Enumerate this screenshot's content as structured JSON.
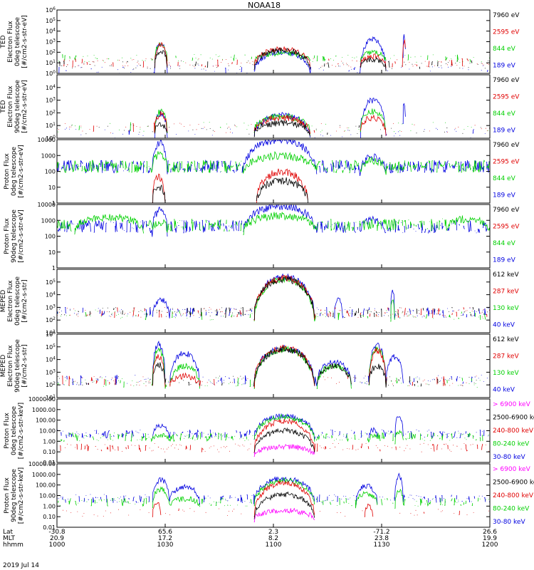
{
  "title": "NOAA18",
  "date_label": "2019 Jul 14",
  "colors": {
    "black": "#000000",
    "red": "#e00000",
    "green": "#00d000",
    "blue": "#0000e0",
    "magenta": "#ff00ff"
  },
  "panels": [
    {
      "ylabel_lines": [
        "TED",
        "Electron Flux",
        "0deg telescope",
        "[#/cm2-s-str-eV]"
      ],
      "scale": "log",
      "ylim": [
        1,
        1000000
      ],
      "ticks": [
        "10^0",
        "10^1",
        "10^2",
        "10^3",
        "10^4",
        "10^5",
        "10^6"
      ],
      "legend": [
        {
          "label": "7960 eV",
          "color": "black"
        },
        {
          "label": "2595 eV",
          "color": "red"
        },
        {
          "label": "844 eV",
          "color": "green"
        },
        {
          "label": "189 eV",
          "color": "blue"
        }
      ]
    },
    {
      "ylabel_lines": [
        "TED",
        "Electron Flux",
        "90deg telescope",
        "[#/cm2-s-str-eV]"
      ],
      "scale": "log",
      "ylim": [
        1,
        100000
      ],
      "ticks": [
        "10^0",
        "10^1",
        "10^2",
        "10^3",
        "10^4"
      ],
      "legend": [
        {
          "label": "7960 eV",
          "color": "black"
        },
        {
          "label": "2595 eV",
          "color": "red"
        },
        {
          "label": "844 eV",
          "color": "green"
        },
        {
          "label": "189 eV",
          "color": "blue"
        }
      ]
    },
    {
      "ylabel_lines": [
        "Proton Flux",
        "0deg telescope",
        "[#/cm2-s-str-eV]"
      ],
      "scale": "log",
      "ylim": [
        1,
        10000
      ],
      "ticks": [
        "1",
        "10",
        "100",
        "1000",
        "10000"
      ],
      "legend": [
        {
          "label": "7960 eV",
          "color": "black"
        },
        {
          "label": "2595 eV",
          "color": "red"
        },
        {
          "label": "844 eV",
          "color": "green"
        },
        {
          "label": "189 eV",
          "color": "blue"
        }
      ]
    },
    {
      "ylabel_lines": [
        "Proton Flux",
        "90deg telescope",
        "[#/cm2-s-str-eV]"
      ],
      "scale": "log",
      "ylim": [
        1,
        10000
      ],
      "ticks": [
        "1",
        "10",
        "100",
        "1000",
        "10000"
      ],
      "legend": [
        {
          "label": "7960 eV",
          "color": "black"
        },
        {
          "label": "2595 eV",
          "color": "red"
        },
        {
          "label": "844 eV",
          "color": "green"
        },
        {
          "label": "189 eV",
          "color": "blue"
        }
      ]
    },
    {
      "ylabel_lines": [
        "MEPED",
        "Electron Flux",
        "0deg telescope",
        "[#/cm2-s-str]"
      ],
      "scale": "log",
      "ylim": [
        10,
        1000000
      ],
      "ticks": [
        "10^1",
        "10^2",
        "10^3",
        "10^4",
        "10^5"
      ],
      "legend": [
        {
          "label": "612 keV",
          "color": "black"
        },
        {
          "label": "287 keV",
          "color": "red"
        },
        {
          "label": "130 keV",
          "color": "green"
        },
        {
          "label": "40 keV",
          "color": "blue"
        }
      ]
    },
    {
      "ylabel_lines": [
        "MEPED",
        "Electron Flux",
        "90deg telescope",
        "[#/cm2-s-str]"
      ],
      "scale": "log",
      "ylim": [
        10,
        1000000
      ],
      "ticks": [
        "10^1",
        "10^2",
        "10^3",
        "10^4",
        "10^5",
        "10^6"
      ],
      "legend": [
        {
          "label": "612 keV",
          "color": "black"
        },
        {
          "label": "287 keV",
          "color": "red"
        },
        {
          "label": "130 keV",
          "color": "green"
        },
        {
          "label": "40 keV",
          "color": "blue"
        }
      ]
    },
    {
      "ylabel_lines": [
        "Proton Flux",
        "0deg telescope",
        "[#/cm2-s-str-keV]"
      ],
      "scale": "log",
      "ylim": [
        0.01,
        10000
      ],
      "ticks": [
        "0.01",
        "0.10",
        "1.00",
        "10.00",
        "100.00",
        "1000.00",
        "10000.00"
      ],
      "legend": [
        {
          "label": "> 6900 keV",
          "color": "magenta"
        },
        {
          "label": "2500-6900 keV",
          "color": "black"
        },
        {
          "label": "240-800 keV",
          "color": "red"
        },
        {
          "label": "80-240 keV",
          "color": "green"
        },
        {
          "label": "30-80 keV",
          "color": "blue"
        }
      ]
    },
    {
      "ylabel_lines": [
        "Proton Flux",
        "90deg telescope",
        "[#/cm2-s-str-keV]"
      ],
      "scale": "log",
      "ylim": [
        0.01,
        10000
      ],
      "ticks": [
        "0.01",
        "0.10",
        "1.00",
        "10.00",
        "100.00",
        "1000.00",
        "10000.00"
      ],
      "legend": [
        {
          "label": "> 6900 keV",
          "color": "magenta"
        },
        {
          "label": "2500-6900 keV",
          "color": "black"
        },
        {
          "label": "240-800 keV",
          "color": "red"
        },
        {
          "label": "80-240 keV",
          "color": "green"
        },
        {
          "label": "30-80 keV",
          "color": "blue"
        }
      ]
    }
  ],
  "chart_data": {
    "type": "line",
    "title": "NOAA18",
    "x_axis": {
      "row_labels": [
        "Lat",
        "MLT",
        "hhmm"
      ],
      "columns": [
        {
          "Lat": "-30.8",
          "MLT": "20.9",
          "hhmm": "1000"
        },
        {
          "Lat": "65.6",
          "MLT": "17.2",
          "hhmm": "1030"
        },
        {
          "Lat": "2.3",
          "MLT": "8.2",
          "hhmm": "1100"
        },
        {
          "Lat": "-71.2",
          "MLT": "23.8",
          "hhmm": "1130"
        },
        {
          "Lat": "26.6",
          "MLT": "19.9",
          "hhmm": "1200"
        }
      ],
      "xlim_hhmm": [
        "1000",
        "1200"
      ]
    },
    "series_envelopes": [
      {
        "panel": 0,
        "color": "blue",
        "baseline": 0.0,
        "floor": 0.0,
        "events": [
          [
            0.225,
            0.255,
            2.9
          ],
          [
            0.455,
            0.585,
            2.0
          ],
          [
            0.7,
            0.76,
            3.2
          ],
          [
            0.798,
            0.806,
            3.5
          ]
        ],
        "sparse": 0.15
      },
      {
        "panel": 0,
        "color": "green",
        "baseline": 1.0,
        "floor": 0.6,
        "events": [
          [
            0.225,
            0.255,
            2.8
          ],
          [
            0.455,
            0.585,
            1.9
          ],
          [
            0.7,
            0.76,
            2.0
          ]
        ],
        "sparse": 0.2
      },
      {
        "panel": 0,
        "color": "red",
        "baseline": 0.6,
        "floor": 0.4,
        "events": [
          [
            0.225,
            0.255,
            2.7
          ],
          [
            0.455,
            0.585,
            2.3
          ],
          [
            0.7,
            0.76,
            1.6
          ],
          [
            0.798,
            0.806,
            3.1
          ]
        ],
        "sparse": 0.3
      },
      {
        "panel": 0,
        "color": "black",
        "baseline": 0.4,
        "floor": 0.2,
        "events": [
          [
            0.225,
            0.255,
            2.1
          ],
          [
            0.455,
            0.585,
            2.2
          ],
          [
            0.7,
            0.76,
            1.3
          ]
        ],
        "sparse": 0.2
      },
      {
        "panel": 1,
        "color": "blue",
        "baseline": 0.0,
        "floor": 0.0,
        "events": [
          [
            0.225,
            0.255,
            2.0
          ],
          [
            0.455,
            0.585,
            1.8
          ],
          [
            0.7,
            0.76,
            3.0
          ],
          [
            0.798,
            0.806,
            2.9
          ]
        ],
        "sparse": 0.1
      },
      {
        "panel": 1,
        "color": "green",
        "baseline": 0.5,
        "floor": 0.2,
        "events": [
          [
            0.225,
            0.255,
            2.1
          ],
          [
            0.455,
            0.585,
            1.7
          ],
          [
            0.7,
            0.76,
            2.1
          ]
        ],
        "sparse": 0.1
      },
      {
        "panel": 1,
        "color": "red",
        "baseline": 0.4,
        "floor": 0.2,
        "events": [
          [
            0.225,
            0.255,
            1.9
          ],
          [
            0.455,
            0.585,
            1.6
          ],
          [
            0.7,
            0.76,
            1.6
          ]
        ],
        "sparse": 0.1
      },
      {
        "panel": 1,
        "color": "black",
        "baseline": 0.3,
        "floor": 0.1,
        "events": [
          [
            0.225,
            0.255,
            1.0
          ],
          [
            0.455,
            0.585,
            1.2
          ]
        ],
        "sparse": 0.1
      },
      {
        "panel": 2,
        "color": "blue",
        "baseline": 1.9,
        "floor": 0.9,
        "events": [
          [
            0.22,
            0.255,
            3.8
          ],
          [
            0.43,
            0.6,
            4.0
          ],
          [
            0.7,
            0.76,
            2.9
          ]
        ],
        "sparse": 0.8
      },
      {
        "panel": 2,
        "color": "green",
        "baseline": 1.9,
        "floor": 0.5,
        "events": [
          [
            0.22,
            0.255,
            3.1
          ],
          [
            0.43,
            0.6,
            3.0
          ],
          [
            0.7,
            0.76,
            2.7
          ]
        ],
        "sparse": 0.8
      },
      {
        "panel": 2,
        "color": "red",
        "baseline": 0.0,
        "floor": 0.0,
        "events": [
          [
            0.46,
            0.58,
            2.0
          ],
          [
            0.22,
            0.25,
            1.6
          ]
        ],
        "sparse": 0.0
      },
      {
        "panel": 2,
        "color": "black",
        "baseline": 0.0,
        "floor": 0.0,
        "events": [
          [
            0.46,
            0.58,
            1.4
          ],
          [
            0.22,
            0.25,
            1.0
          ]
        ],
        "sparse": 0.0
      },
      {
        "panel": 3,
        "color": "blue",
        "baseline": 2.2,
        "floor": 0.8,
        "events": [
          [
            0.22,
            0.255,
            3.6
          ],
          [
            0.43,
            0.6,
            3.9
          ],
          [
            0.7,
            0.76,
            3.0
          ]
        ],
        "sparse": 0.7
      },
      {
        "panel": 3,
        "color": "green",
        "baseline": 2.3,
        "floor": 0.6,
        "events": [
          [
            0.04,
            0.2,
            3.2
          ],
          [
            0.22,
            0.255,
            2.9
          ],
          [
            0.43,
            0.6,
            3.3
          ],
          [
            0.9,
            1.0,
            3.1
          ]
        ],
        "sparse": 0.7
      },
      {
        "panel": 4,
        "color": "blue",
        "baseline": 2.2,
        "floor": 2.0,
        "events": [
          [
            0.22,
            0.26,
            3.6
          ],
          [
            0.455,
            0.595,
            5.4
          ],
          [
            0.64,
            0.66,
            3.8
          ],
          [
            0.77,
            0.78,
            4.5
          ]
        ],
        "sparse": 0.4
      },
      {
        "panel": 4,
        "color": "green",
        "baseline": 2.0,
        "floor": 1.9,
        "events": [
          [
            0.455,
            0.595,
            5.2
          ],
          [
            0.77,
            0.78,
            3.5
          ]
        ],
        "sparse": 0.2
      },
      {
        "panel": 4,
        "color": "red",
        "baseline": 2.2,
        "floor": 2.0,
        "events": [
          [
            0.455,
            0.595,
            5.3
          ]
        ],
        "sparse": 0.3
      },
      {
        "panel": 4,
        "color": "black",
        "baseline": 2.2,
        "floor": 2.0,
        "events": [
          [
            0.455,
            0.595,
            5.2
          ]
        ],
        "sparse": 0.3
      },
      {
        "panel": 5,
        "color": "blue",
        "baseline": 2.0,
        "floor": 1.9,
        "events": [
          [
            0.22,
            0.25,
            5.2
          ],
          [
            0.26,
            0.33,
            4.5
          ],
          [
            0.455,
            0.595,
            4.9
          ],
          [
            0.6,
            0.68,
            3.8
          ],
          [
            0.72,
            0.76,
            5.1
          ],
          [
            0.76,
            0.8,
            4.2
          ]
        ],
        "sparse": 0.3
      },
      {
        "panel": 5,
        "color": "green",
        "baseline": 1.8,
        "floor": 1.7,
        "events": [
          [
            0.22,
            0.25,
            4.8
          ],
          [
            0.26,
            0.33,
            3.5
          ],
          [
            0.455,
            0.595,
            4.8
          ],
          [
            0.6,
            0.68,
            3.5
          ],
          [
            0.72,
            0.76,
            4.9
          ]
        ],
        "sparse": 0.2
      },
      {
        "panel": 5,
        "color": "red",
        "baseline": 1.9,
        "floor": 1.8,
        "events": [
          [
            0.22,
            0.25,
            4.2
          ],
          [
            0.26,
            0.33,
            2.7
          ],
          [
            0.455,
            0.595,
            4.9
          ],
          [
            0.72,
            0.76,
            4.7
          ]
        ],
        "sparse": 0.2
      },
      {
        "panel": 5,
        "color": "black",
        "baseline": 1.9,
        "floor": 1.8,
        "events": [
          [
            0.22,
            0.25,
            3.6
          ],
          [
            0.455,
            0.595,
            4.8
          ],
          [
            0.6,
            0.68,
            3.5
          ],
          [
            0.72,
            0.76,
            3.5
          ]
        ],
        "sparse": 0.2
      },
      {
        "panel": 6,
        "color": "blue",
        "baseline": 0.3,
        "floor": 0.1,
        "events": [
          [
            0.22,
            0.26,
            1.5
          ],
          [
            0.455,
            0.595,
            2.4
          ],
          [
            0.72,
            0.74,
            1.1
          ],
          [
            0.78,
            0.8,
            2.4
          ]
        ],
        "sparse": 0.5
      },
      {
        "panel": 6,
        "color": "green",
        "baseline": 0.0,
        "floor": -0.3,
        "events": [
          [
            0.22,
            0.26,
            0.6
          ],
          [
            0.455,
            0.595,
            2.3
          ],
          [
            0.72,
            0.74,
            0.5
          ],
          [
            0.78,
            0.8,
            0.8
          ]
        ],
        "sparse": 0.5
      },
      {
        "panel": 6,
        "color": "red",
        "baseline": -1.0,
        "floor": -1.0,
        "events": [
          [
            0.455,
            0.595,
            1.9
          ]
        ],
        "sparse": 0.3
      },
      {
        "panel": 6,
        "color": "black",
        "baseline": -1.2,
        "floor": -1.2,
        "events": [
          [
            0.455,
            0.595,
            1.0
          ]
        ],
        "sparse": 0.0
      },
      {
        "panel": 6,
        "color": "magenta",
        "baseline": -1.4,
        "floor": -1.5,
        "events": [
          [
            0.455,
            0.595,
            -0.5
          ]
        ],
        "sparse": 0.0
      },
      {
        "panel": 7,
        "color": "blue",
        "baseline": 0.3,
        "floor": 0.0,
        "events": [
          [
            0.22,
            0.26,
            2.5
          ],
          [
            0.26,
            0.33,
            1.8
          ],
          [
            0.455,
            0.595,
            2.6
          ],
          [
            0.69,
            0.74,
            1.9
          ],
          [
            0.78,
            0.8,
            2.9
          ]
        ],
        "sparse": 0.4
      },
      {
        "panel": 7,
        "color": "green",
        "baseline": 0.0,
        "floor": -0.3,
        "events": [
          [
            0.22,
            0.26,
            1.6
          ],
          [
            0.26,
            0.33,
            0.7
          ],
          [
            0.455,
            0.595,
            2.4
          ],
          [
            0.69,
            0.74,
            1.2
          ],
          [
            0.78,
            0.8,
            1.5
          ]
        ],
        "sparse": 0.4
      },
      {
        "panel": 7,
        "color": "red",
        "baseline": -1.0,
        "floor": -1.0,
        "events": [
          [
            0.22,
            0.24,
            0.4
          ],
          [
            0.455,
            0.595,
            2.2
          ],
          [
            0.71,
            0.73,
            0.0
          ]
        ],
        "sparse": 0.1
      },
      {
        "panel": 7,
        "color": "black",
        "baseline": -1.2,
        "floor": -1.2,
        "events": [
          [
            0.455,
            0.595,
            1.1
          ]
        ],
        "sparse": 0.0
      },
      {
        "panel": 7,
        "color": "magenta",
        "baseline": -1.4,
        "floor": -1.5,
        "events": [
          [
            0.455,
            0.595,
            -0.4
          ]
        ],
        "sparse": 0.0
      }
    ]
  }
}
